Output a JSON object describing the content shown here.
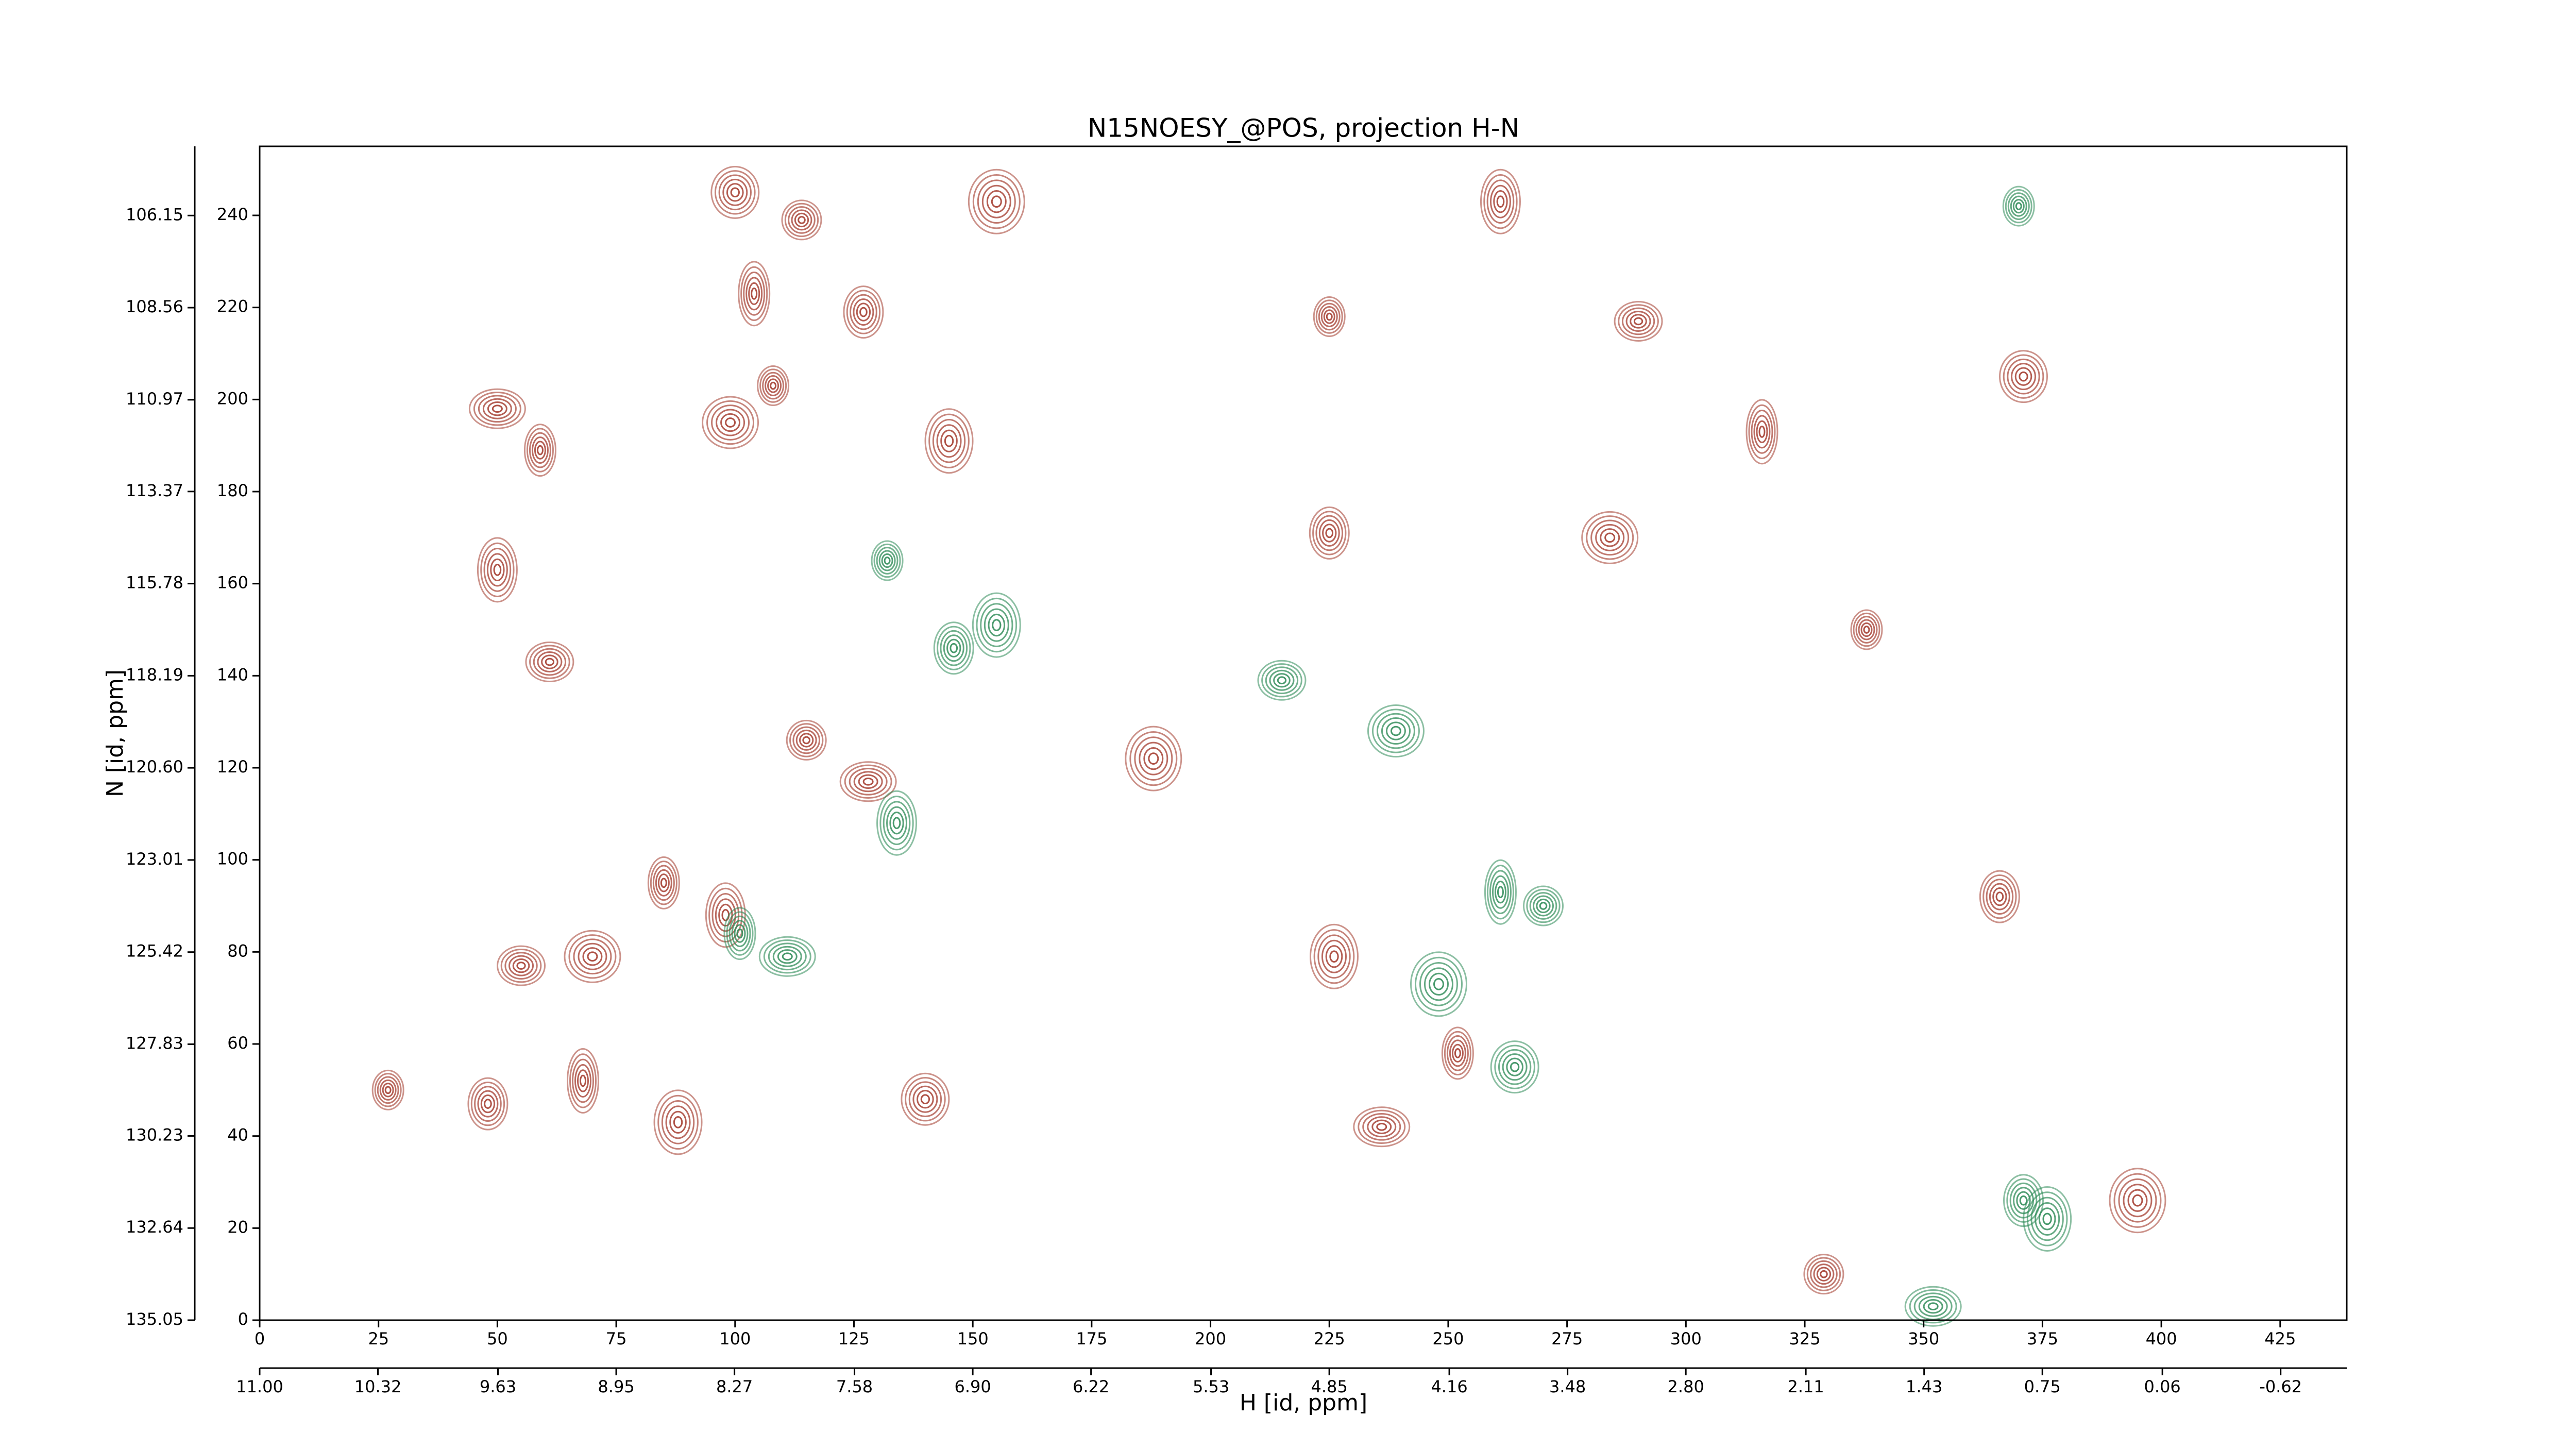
{
  "chart_data": {
    "type": "contour",
    "title": "N15NOESY_@POS, projection H-N",
    "x_label": "H [id, ppm]",
    "y_label": "N [id, ppm]",
    "xlim": [
      0,
      439
    ],
    "xticks": [
      0,
      25,
      50,
      75,
      100,
      125,
      150,
      175,
      200,
      225,
      250,
      275,
      300,
      325,
      350,
      375,
      400,
      425
    ],
    "x2lim": [
      11.0,
      -1.0
    ],
    "x2ticks": [
      {
        "value": 11.0,
        "label": "11.00"
      },
      {
        "value": 10.32,
        "label": "10.32"
      },
      {
        "value": 9.63,
        "label": "9.63"
      },
      {
        "value": 8.95,
        "label": "8.95"
      },
      {
        "value": 8.27,
        "label": "8.27"
      },
      {
        "value": 7.58,
        "label": "7.58"
      },
      {
        "value": 6.9,
        "label": "6.90"
      },
      {
        "value": 6.22,
        "label": "6.22"
      },
      {
        "value": 5.53,
        "label": "5.53"
      },
      {
        "value": 4.85,
        "label": "4.85"
      },
      {
        "value": 4.16,
        "label": "4.16"
      },
      {
        "value": 3.48,
        "label": "3.48"
      },
      {
        "value": 2.8,
        "label": "2.80"
      },
      {
        "value": 2.11,
        "label": "2.11"
      },
      {
        "value": 1.43,
        "label": "1.43"
      },
      {
        "value": 0.75,
        "label": "0.75"
      },
      {
        "value": 0.06,
        "label": "0.06"
      },
      {
        "value": -0.62,
        "label": "-0.62"
      }
    ],
    "ylim": [
      0,
      255
    ],
    "yticks": [
      0,
      20,
      40,
      60,
      80,
      100,
      120,
      140,
      160,
      180,
      200,
      220,
      240
    ],
    "y2lim": [
      135.05,
      104.34
    ],
    "y2ticks": [
      {
        "value": 135.05,
        "label": "135.05"
      },
      {
        "value": 132.64,
        "label": "132.64"
      },
      {
        "value": 130.23,
        "label": "130.23"
      },
      {
        "value": 127.83,
        "label": "127.83"
      },
      {
        "value": 125.42,
        "label": "125.42"
      },
      {
        "value": 123.01,
        "label": "123.01"
      },
      {
        "value": 120.6,
        "label": "120.60"
      },
      {
        "value": 118.19,
        "label": "118.19"
      },
      {
        "value": 115.78,
        "label": "115.78"
      },
      {
        "value": 113.37,
        "label": "113.37"
      },
      {
        "value": 110.97,
        "label": "110.97"
      },
      {
        "value": 108.56,
        "label": "108.56"
      },
      {
        "value": 106.15,
        "label": "106.15"
      }
    ],
    "series": [
      {
        "color": "#a33a2c",
        "x": [
          27,
          48,
          88,
          50,
          59,
          50,
          61,
          99,
          104,
          114,
          100,
          155,
          108,
          127,
          145,
          128,
          85,
          98,
          55,
          70,
          68,
          115,
          140,
          188,
          225,
          225,
          226,
          236,
          252,
          261,
          290,
          284,
          316,
          329,
          371,
          395,
          338,
          366
        ],
        "values": [
          50,
          47,
          43,
          198,
          189,
          163,
          143,
          195,
          223,
          239,
          245,
          243,
          203,
          219,
          191,
          117,
          95,
          88,
          77,
          79,
          52,
          126,
          48,
          122,
          218,
          171,
          79,
          42,
          58,
          243,
          217,
          170,
          193,
          10,
          205,
          26,
          150,
          92
        ]
      },
      {
        "color": "#2e8b57",
        "x": [
          132,
          146,
          155,
          111,
          101,
          134,
          215,
          239,
          261,
          270,
          264,
          248,
          370,
          371,
          376,
          352
        ],
        "values": [
          165,
          146,
          151,
          79,
          84,
          108,
          139,
          128,
          93,
          90,
          55,
          73,
          242,
          26,
          22,
          3
        ]
      }
    ]
  }
}
